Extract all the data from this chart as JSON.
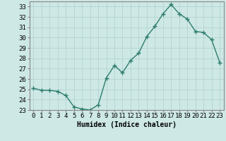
{
  "x": [
    0,
    1,
    2,
    3,
    4,
    5,
    6,
    7,
    8,
    9,
    10,
    11,
    12,
    13,
    14,
    15,
    16,
    17,
    18,
    19,
    20,
    21,
    22,
    23
  ],
  "y": [
    25.1,
    24.9,
    24.9,
    24.8,
    24.4,
    23.3,
    23.1,
    23.0,
    23.5,
    26.1,
    27.3,
    26.6,
    27.8,
    28.5,
    30.1,
    31.1,
    32.3,
    33.2,
    32.3,
    31.8,
    30.6,
    30.5,
    29.8,
    27.6
  ],
  "line_color": "#2e7d6e",
  "marker": "+",
  "marker_size": 4,
  "line_width": 1.0,
  "bg_color": "#cde8e5",
  "grid_color": "#b0d0cd",
  "xlabel": "Humidex (Indice chaleur)",
  "ylim": [
    23,
    33.5
  ],
  "yticks": [
    23,
    24,
    25,
    26,
    27,
    28,
    29,
    30,
    31,
    32,
    33
  ],
  "xticks": [
    0,
    1,
    2,
    3,
    4,
    5,
    6,
    7,
    8,
    9,
    10,
    11,
    12,
    13,
    14,
    15,
    16,
    17,
    18,
    19,
    20,
    21,
    22,
    23
  ],
  "xlabel_fontsize": 7,
  "tick_fontsize": 6.5,
  "spine_color": "#888888"
}
